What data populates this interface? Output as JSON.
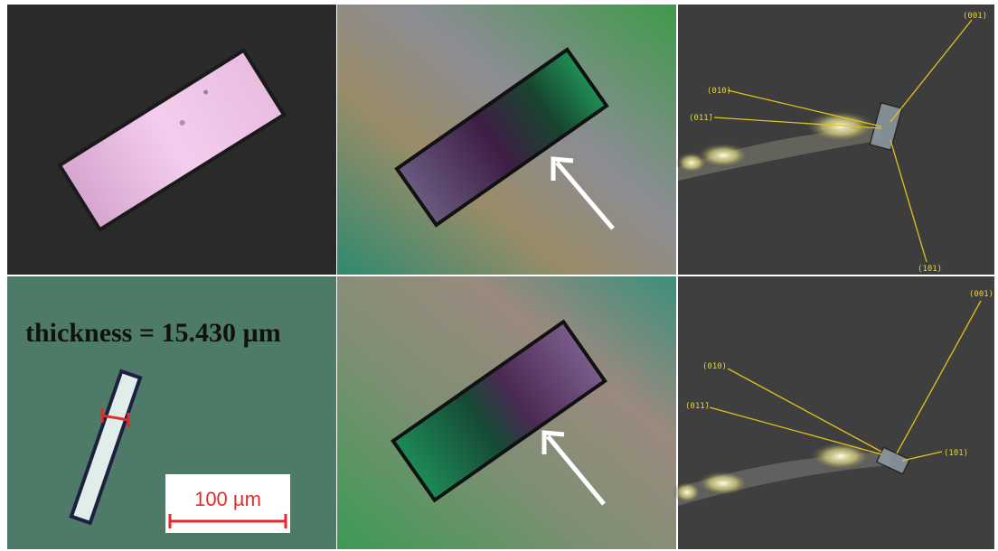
{
  "bottom_left": {
    "thickness": "thickness = 15.430 µm",
    "scale_bar": "100 µm"
  },
  "top_right": {
    "labels": [
      "(001)",
      "(010)",
      "(011̄)",
      "(1̄01)"
    ]
  },
  "bottom_right": {
    "labels": [
      "(001)",
      "(010)",
      "(011̄)",
      "(1̄01)"
    ]
  }
}
